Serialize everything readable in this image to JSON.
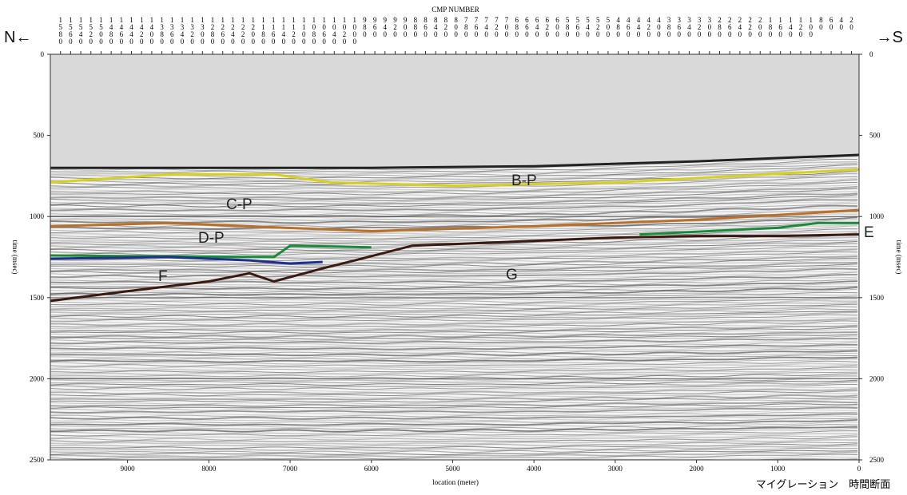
{
  "chart_data": {
    "type": "line",
    "x_label": "location (meter)",
    "y_label": "time (msec)",
    "x2_label": "CMP NUMBER",
    "left_label": "N←",
    "right_label": "→S",
    "caption": "マイグレーション　時間断面",
    "xlim": [
      9950,
      0
    ],
    "xticks": [
      9000,
      8000,
      7000,
      6000,
      5000,
      4000,
      3000,
      2000,
      1000,
      0
    ],
    "ylim": [
      0,
      2500
    ],
    "y_inverted": true,
    "yticks": [
      0,
      500,
      1000,
      1500,
      2000,
      2500
    ],
    "x2lim": [
      1600,
      5
    ],
    "x2ticks": [
      1580,
      1560,
      1540,
      1520,
      1500,
      1480,
      1460,
      1440,
      1420,
      1400,
      1380,
      1360,
      1340,
      1320,
      1300,
      1280,
      1260,
      1240,
      1220,
      1200,
      1180,
      1160,
      1140,
      1120,
      1100,
      1080,
      1060,
      1040,
      1020,
      1000,
      980,
      960,
      940,
      920,
      900,
      880,
      860,
      840,
      820,
      800,
      780,
      760,
      740,
      720,
      700,
      680,
      660,
      640,
      620,
      600,
      580,
      560,
      540,
      520,
      500,
      480,
      460,
      440,
      420,
      400,
      380,
      360,
      340,
      320,
      300,
      280,
      260,
      240,
      220,
      200,
      180,
      160,
      140,
      120,
      100,
      80,
      60,
      40,
      20
    ],
    "grid": true,
    "annotations": [
      "B-P",
      "C-P",
      "D-P",
      "E",
      "F",
      "G"
    ],
    "series": [
      {
        "color": "#222222",
        "x": [
          9950,
          8000,
          6000,
          4000,
          2000,
          0
        ],
        "values": [
          700,
          700,
          700,
          690,
          660,
          620
        ]
      },
      {
        "color": "#d8d020",
        "x": [
          9950,
          8500,
          7200,
          6500,
          5000,
          3000,
          1500,
          0
        ],
        "values": [
          790,
          740,
          740,
          790,
          810,
          790,
          750,
          710
        ]
      },
      {
        "color": "#b8702a",
        "x": [
          9950,
          8500,
          7500,
          6500,
          6000,
          4000,
          2000,
          0
        ],
        "values": [
          1060,
          1040,
          1060,
          1080,
          1090,
          1060,
          1020,
          960
        ]
      },
      {
        "color": "#1a8a3a",
        "x": [
          9950,
          7200,
          7000,
          6000,
          4000,
          2700,
          1000,
          500,
          0
        ],
        "values": [
          1240,
          1250,
          1180,
          1190,
          null,
          1110,
          1070,
          1040,
          1040
        ]
      },
      {
        "color": "#1f2f8a",
        "x": [
          9950,
          8500,
          7500,
          7000,
          6600
        ],
        "values": [
          1260,
          1250,
          1270,
          1290,
          1280
        ]
      },
      {
        "color": "#3a1a10",
        "x": [
          9950,
          9000,
          8000,
          7500,
          7200,
          6600,
          6200,
          5500,
          4500,
          3000,
          2000,
          1000,
          0
        ],
        "values": [
          1520,
          1460,
          1400,
          1350,
          1400,
          1320,
          1270,
          1180,
          1160,
          1130,
          1120,
          1120,
          1110
        ]
      }
    ]
  }
}
